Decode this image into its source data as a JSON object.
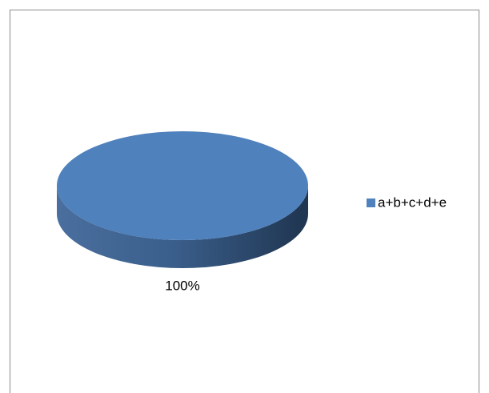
{
  "chart_data": {
    "type": "pie",
    "categories": [
      "a+b+c+d+e"
    ],
    "values": [
      100
    ],
    "value_labels": [
      "100%"
    ],
    "colors": [
      "#4f81bd"
    ],
    "legend": "right"
  }
}
